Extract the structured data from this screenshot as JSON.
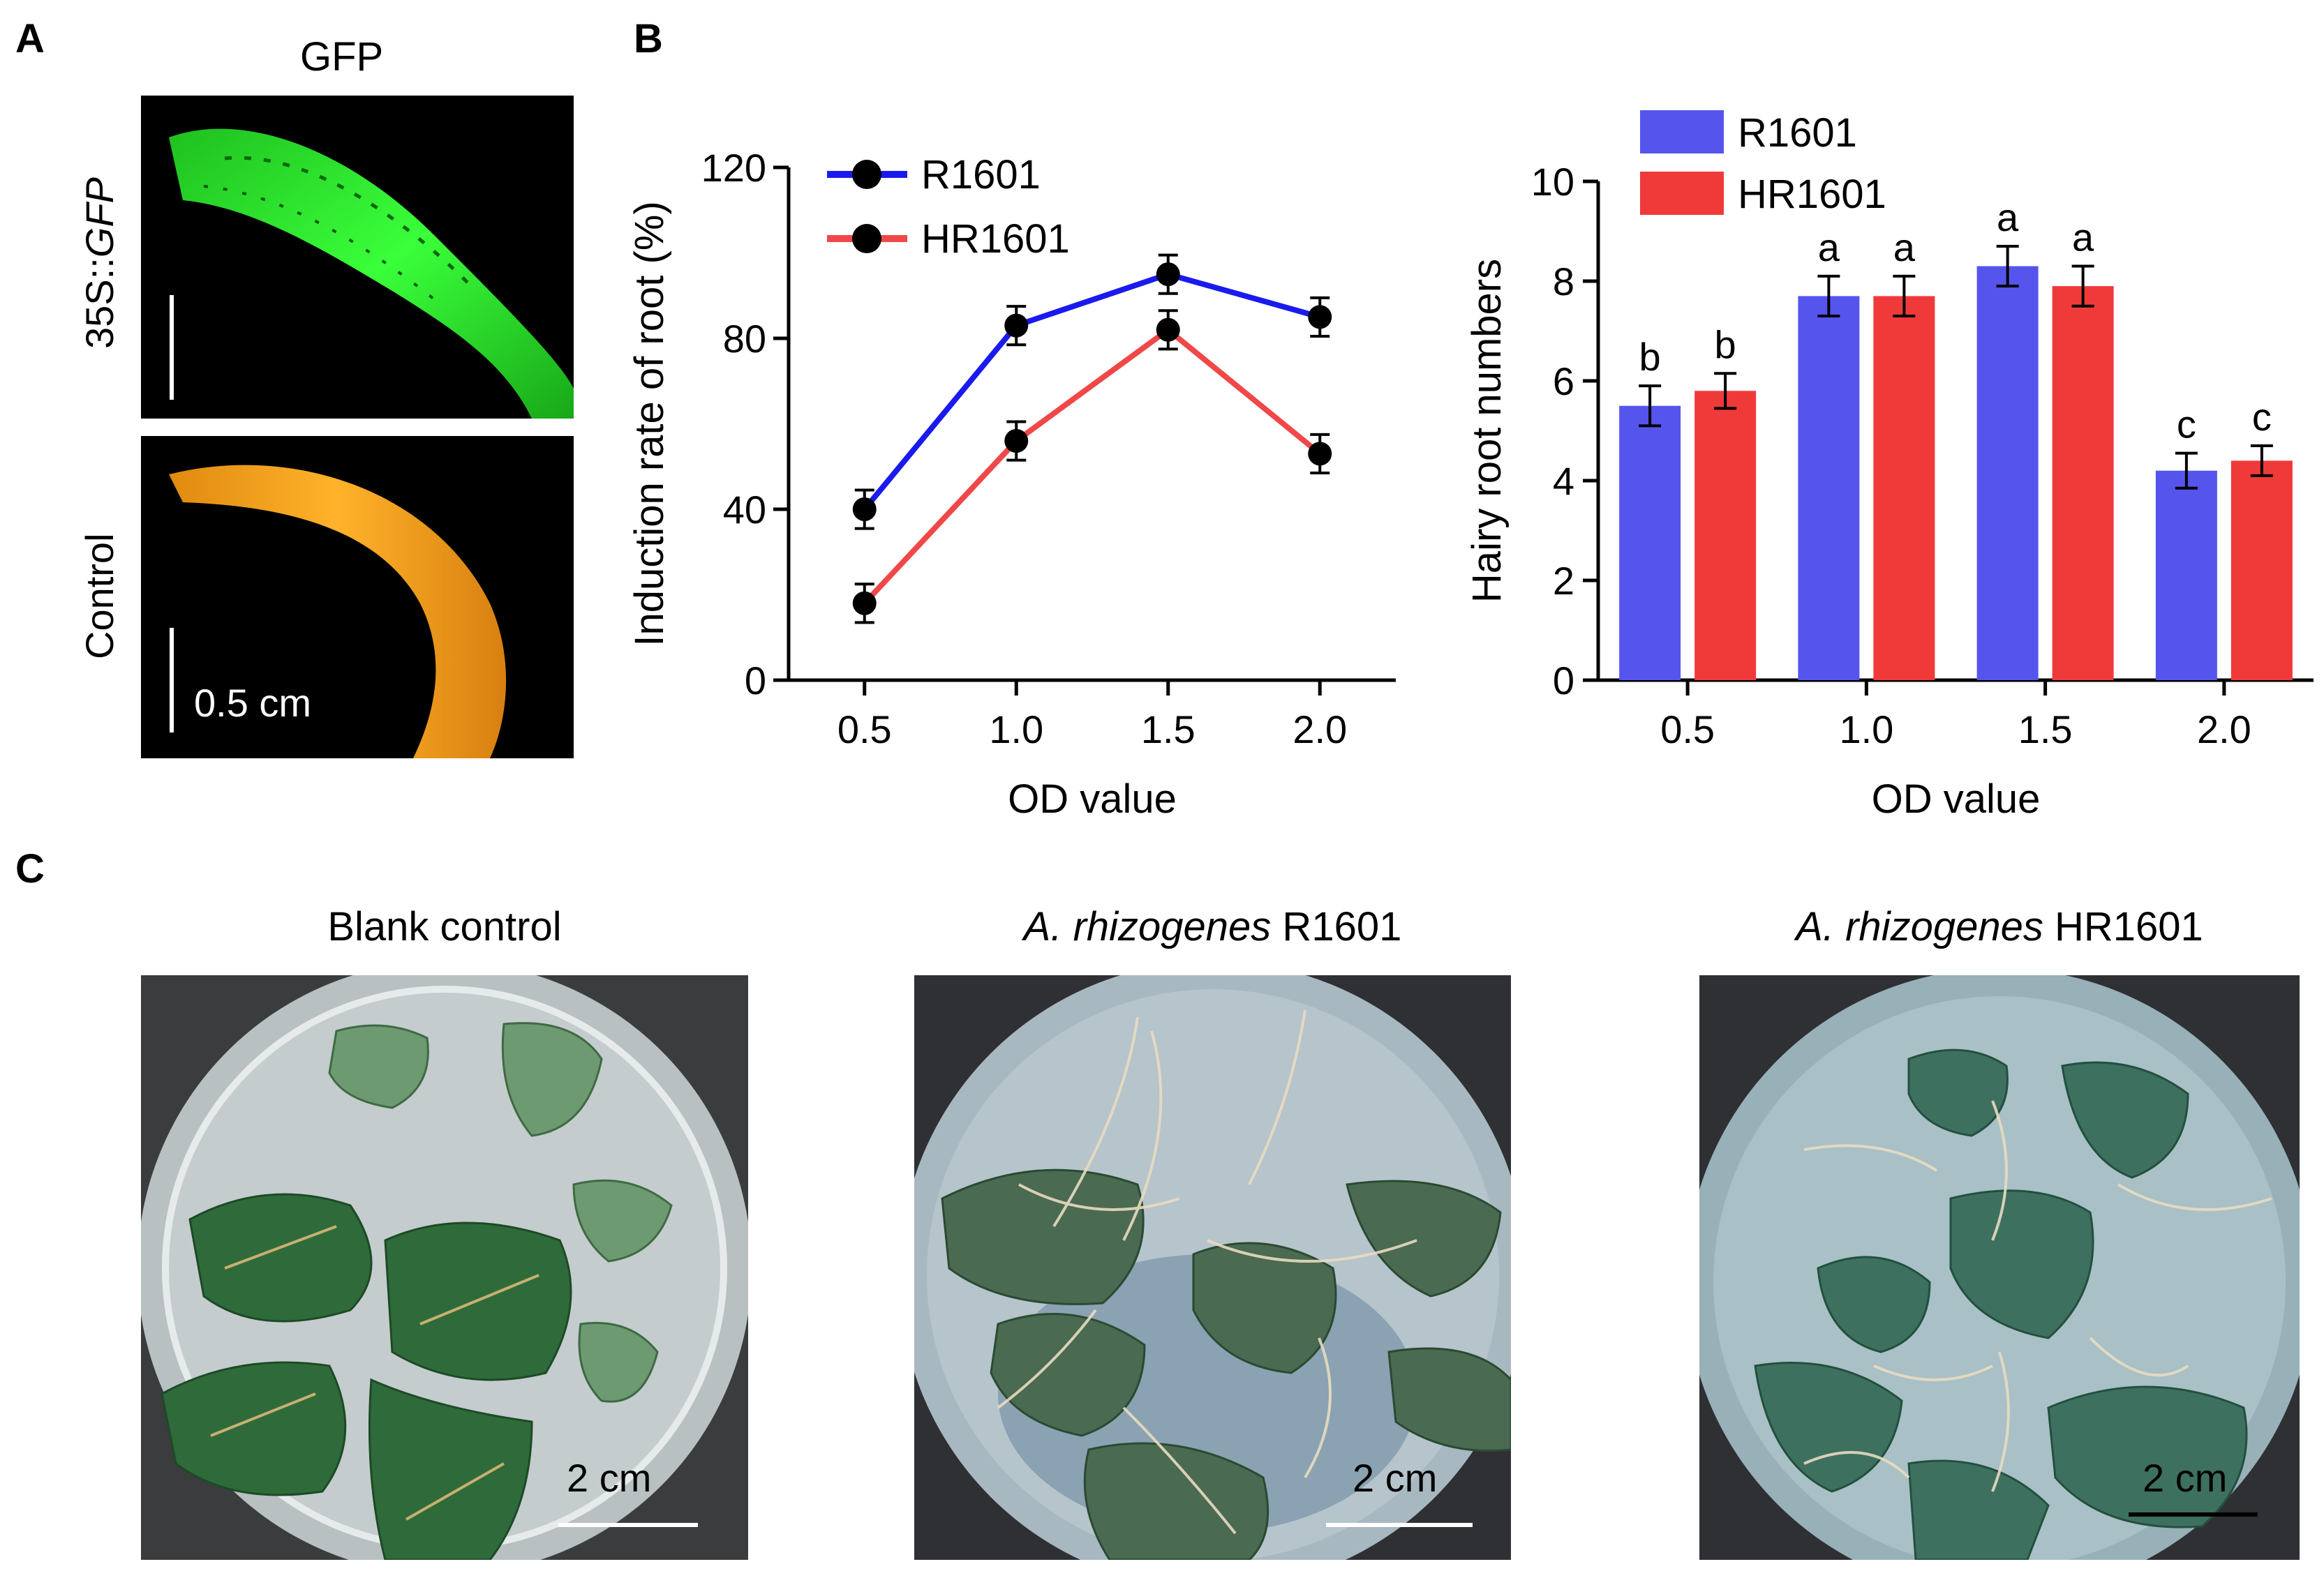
{
  "panels": {
    "a": {
      "letter": "A",
      "column_title": "GFP",
      "row1_label_prefix": "35S::",
      "row1_label_gene": "GFP",
      "row2_label": "Control",
      "scale_label": "0.5 cm"
    },
    "b": {
      "letter": "B"
    },
    "c": {
      "letter": "C",
      "titles": [
        {
          "italic": "",
          "plain": "Blank control"
        },
        {
          "italic": "A. rhizogenes",
          "plain": " R1601"
        },
        {
          "italic": "A. rhizogenes",
          "plain": " HR1601"
        }
      ],
      "scale_label": "2 cm"
    }
  },
  "colors": {
    "blue": "#5555ee",
    "blue_line": "#1a1aee",
    "red": "#f03a3a",
    "red_line": "#f04848",
    "gfp": "#22dd22",
    "control": "#f0a020"
  },
  "chart_data": [
    {
      "type": "line",
      "title": "",
      "xlabel": "OD value",
      "ylabel": "Induction rate of root (%)",
      "x": [
        0.5,
        1.0,
        1.5,
        2.0
      ],
      "x_ticks": [
        "0.5",
        "1.0",
        "1.5",
        "2.0"
      ],
      "ylim": [
        0,
        120
      ],
      "y_ticks": [
        "0",
        "40",
        "80",
        "120"
      ],
      "legend": "top-left",
      "series": [
        {
          "name": "R1601",
          "values": [
            40,
            83,
            95,
            85
          ],
          "errors": [
            4.5,
            4.5,
            4.5,
            4.5
          ]
        },
        {
          "name": "HR1601",
          "values": [
            18,
            56,
            82,
            53
          ],
          "errors": [
            4.5,
            4.5,
            4.5,
            4.5
          ]
        }
      ]
    },
    {
      "type": "bar",
      "title": "",
      "xlabel": "OD value",
      "ylabel": "Hairy root numbers",
      "categories": [
        "0.5",
        "1.0",
        "1.5",
        "2.0"
      ],
      "ylim": [
        0,
        10
      ],
      "y_ticks": [
        "0",
        "2",
        "4",
        "6",
        "8",
        "10"
      ],
      "legend": "top-left",
      "series": [
        {
          "name": "R1601",
          "values": [
            5.5,
            7.7,
            8.3,
            4.2
          ],
          "errors": [
            0.4,
            0.4,
            0.4,
            0.35
          ],
          "letters": [
            "b",
            "a",
            "a",
            "c"
          ]
        },
        {
          "name": "HR1601",
          "values": [
            5.8,
            7.7,
            7.9,
            4.4
          ],
          "errors": [
            0.35,
            0.4,
            0.4,
            0.3
          ],
          "letters": [
            "b",
            "a",
            "a",
            "c"
          ]
        }
      ]
    }
  ]
}
